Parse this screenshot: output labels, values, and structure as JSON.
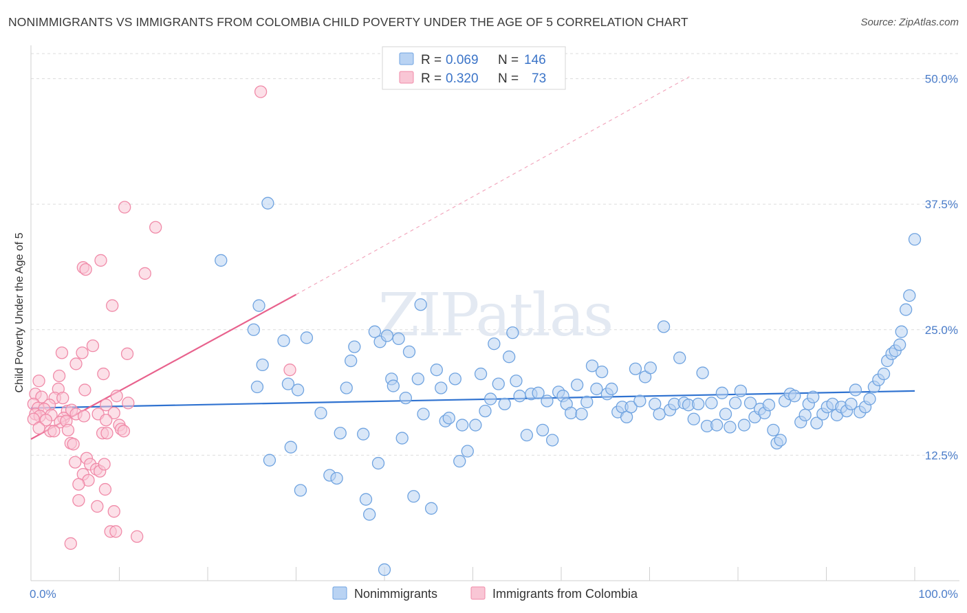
{
  "title": "NONIMMIGRANTS VS IMMIGRANTS FROM COLOMBIA CHILD POVERTY UNDER THE AGE OF 5 CORRELATION CHART",
  "source": "Source: ZipAtlas.com",
  "watermark": "ZIPatlas",
  "colors": {
    "blue": "#6fa3e0",
    "blue_fill": "#b9d3f3",
    "blue_line": "#2f72d0",
    "pink": "#f08aa8",
    "pink_fill": "#f9c6d5",
    "pink_line": "#e8628d",
    "grid": "#dcdcdc",
    "tick_label": "#4a7cc9"
  },
  "legend": {
    "r_label": "R =",
    "n_label": "N =",
    "series": [
      {
        "r": "0.069",
        "n": "146"
      },
      {
        "r": "0.320",
        "n": "73"
      }
    ]
  },
  "chart_data": {
    "type": "scatter",
    "title": "NONIMMIGRANTS VS IMMIGRANTS FROM COLOMBIA CHILD POVERTY UNDER THE AGE OF 5 CORRELATION CHART",
    "xlabel": "",
    "ylabel": "Child Poverty Under the Age of 5",
    "xlim": [
      0,
      100
    ],
    "ylim": [
      0,
      52.5
    ],
    "x_tick_labels": [
      "0.0%",
      "100.0%"
    ],
    "y_ticks": [
      12.5,
      25.0,
      37.5,
      50.0
    ],
    "y_tick_labels": [
      "12.5%",
      "25.0%",
      "37.5%",
      "50.0%"
    ],
    "grid": true,
    "legend_position": "top-center",
    "series": [
      {
        "name": "Nonimmigrants",
        "r": 0.069,
        "n": 146,
        "trend": {
          "x": [
            0,
            100
          ],
          "y": [
            17.2,
            18.9
          ]
        },
        "points": [
          [
            21.5,
            31.9
          ],
          [
            26.8,
            37.6
          ],
          [
            25.8,
            27.4
          ],
          [
            25.2,
            25.0
          ],
          [
            25.6,
            19.3
          ],
          [
            26.2,
            21.5
          ],
          [
            28.6,
            23.9
          ],
          [
            29.1,
            19.6
          ],
          [
            29.4,
            13.3
          ],
          [
            27.0,
            12.0
          ],
          [
            30.2,
            19.0
          ],
          [
            30.5,
            9.0
          ],
          [
            31.2,
            24.2
          ],
          [
            32.8,
            16.7
          ],
          [
            33.8,
            10.5
          ],
          [
            34.6,
            10.2
          ],
          [
            35.0,
            14.7
          ],
          [
            35.7,
            19.2
          ],
          [
            36.2,
            21.9
          ],
          [
            36.6,
            23.3
          ],
          [
            37.6,
            14.6
          ],
          [
            37.9,
            8.1
          ],
          [
            38.3,
            6.6
          ],
          [
            38.9,
            24.8
          ],
          [
            39.3,
            11.7
          ],
          [
            39.5,
            23.8
          ],
          [
            40.0,
            1.1
          ],
          [
            40.3,
            24.4
          ],
          [
            40.8,
            20.1
          ],
          [
            41.0,
            19.4
          ],
          [
            41.6,
            24.1
          ],
          [
            42.0,
            14.2
          ],
          [
            42.4,
            18.2
          ],
          [
            42.8,
            22.8
          ],
          [
            43.3,
            8.4
          ],
          [
            43.8,
            20.1
          ],
          [
            44.1,
            27.5
          ],
          [
            44.4,
            16.6
          ],
          [
            45.3,
            7.2
          ],
          [
            45.9,
            21.0
          ],
          [
            46.4,
            19.2
          ],
          [
            46.9,
            15.9
          ],
          [
            47.3,
            16.2
          ],
          [
            48.0,
            20.1
          ],
          [
            48.5,
            11.9
          ],
          [
            48.8,
            15.5
          ],
          [
            49.4,
            12.9
          ],
          [
            50.3,
            15.5
          ],
          [
            50.9,
            20.6
          ],
          [
            51.4,
            16.9
          ],
          [
            52.0,
            18.1
          ],
          [
            52.4,
            23.6
          ],
          [
            52.9,
            19.6
          ],
          [
            53.6,
            17.6
          ],
          [
            54.1,
            22.3
          ],
          [
            54.5,
            24.7
          ],
          [
            54.9,
            19.9
          ],
          [
            55.3,
            18.4
          ],
          [
            56.1,
            14.5
          ],
          [
            56.6,
            18.6
          ],
          [
            57.4,
            18.7
          ],
          [
            57.9,
            15.0
          ],
          [
            58.4,
            17.9
          ],
          [
            59.0,
            14.0
          ],
          [
            59.7,
            18.8
          ],
          [
            60.2,
            18.4
          ],
          [
            60.6,
            17.6
          ],
          [
            61.1,
            16.7
          ],
          [
            61.8,
            19.5
          ],
          [
            62.3,
            16.6
          ],
          [
            62.9,
            17.8
          ],
          [
            63.5,
            21.4
          ],
          [
            64.0,
            19.1
          ],
          [
            64.6,
            20.8
          ],
          [
            65.2,
            18.6
          ],
          [
            65.7,
            19.1
          ],
          [
            66.4,
            16.8
          ],
          [
            66.9,
            17.3
          ],
          [
            67.4,
            16.3
          ],
          [
            67.9,
            17.3
          ],
          [
            68.4,
            21.1
          ],
          [
            68.9,
            17.9
          ],
          [
            69.5,
            20.3
          ],
          [
            70.1,
            21.2
          ],
          [
            70.6,
            17.6
          ],
          [
            71.1,
            16.6
          ],
          [
            71.6,
            25.3
          ],
          [
            72.3,
            17.0
          ],
          [
            72.8,
            17.6
          ],
          [
            73.4,
            22.2
          ],
          [
            73.9,
            17.7
          ],
          [
            74.4,
            17.5
          ],
          [
            75.0,
            16.1
          ],
          [
            75.5,
            17.6
          ],
          [
            76.0,
            20.7
          ],
          [
            76.5,
            15.4
          ],
          [
            77.0,
            17.7
          ],
          [
            77.6,
            15.5
          ],
          [
            78.2,
            18.7
          ],
          [
            78.6,
            16.6
          ],
          [
            79.1,
            15.3
          ],
          [
            79.7,
            17.7
          ],
          [
            80.3,
            18.9
          ],
          [
            80.7,
            15.5
          ],
          [
            81.4,
            17.7
          ],
          [
            81.9,
            16.3
          ],
          [
            82.5,
            17.1
          ],
          [
            83.0,
            16.7
          ],
          [
            83.5,
            17.5
          ],
          [
            84.0,
            15.0
          ],
          [
            84.4,
            13.7
          ],
          [
            84.8,
            14.0
          ],
          [
            85.3,
            17.9
          ],
          [
            85.9,
            18.6
          ],
          [
            86.4,
            18.4
          ],
          [
            87.1,
            15.8
          ],
          [
            87.6,
            16.5
          ],
          [
            88.0,
            17.6
          ],
          [
            88.5,
            18.3
          ],
          [
            88.9,
            15.7
          ],
          [
            89.6,
            16.6
          ],
          [
            90.1,
            17.3
          ],
          [
            90.7,
            17.6
          ],
          [
            91.2,
            16.5
          ],
          [
            91.7,
            17.3
          ],
          [
            92.3,
            16.9
          ],
          [
            92.8,
            17.6
          ],
          [
            93.3,
            19.0
          ],
          [
            93.8,
            16.8
          ],
          [
            94.4,
            17.3
          ],
          [
            94.9,
            18.1
          ],
          [
            95.4,
            19.3
          ],
          [
            95.9,
            20.0
          ],
          [
            96.5,
            20.6
          ],
          [
            96.9,
            21.9
          ],
          [
            97.4,
            22.6
          ],
          [
            97.8,
            22.9
          ],
          [
            98.3,
            23.5
          ],
          [
            98.5,
            24.8
          ],
          [
            99.0,
            27.0
          ],
          [
            99.4,
            28.4
          ],
          [
            100.0,
            34.0
          ]
        ]
      },
      {
        "name": "Immigrants from Colombia",
        "r": 0.32,
        "n": 73,
        "trend_solid": {
          "x": [
            0,
            30
          ],
          "y": [
            14.1,
            28.5
          ]
        },
        "trend_dashed": {
          "x": [
            30,
            74.5
          ],
          "y": [
            28.5,
            50.2
          ]
        },
        "points": [
          [
            26.0,
            48.7
          ],
          [
            10.6,
            37.2
          ],
          [
            14.1,
            35.2
          ],
          [
            12.9,
            30.6
          ],
          [
            7.9,
            31.9
          ],
          [
            5.9,
            31.2
          ],
          [
            6.2,
            31.0
          ],
          [
            9.2,
            27.4
          ],
          [
            10.9,
            22.6
          ],
          [
            7.0,
            23.4
          ],
          [
            5.8,
            22.7
          ],
          [
            3.5,
            22.7
          ],
          [
            5.1,
            21.6
          ],
          [
            8.2,
            20.6
          ],
          [
            3.2,
            20.4
          ],
          [
            29.3,
            21.0
          ],
          [
            0.9,
            19.9
          ],
          [
            3.1,
            19.1
          ],
          [
            6.1,
            19.0
          ],
          [
            0.5,
            18.6
          ],
          [
            1.2,
            18.3
          ],
          [
            2.7,
            18.2
          ],
          [
            3.6,
            18.2
          ],
          [
            9.7,
            18.4
          ],
          [
            0.3,
            17.6
          ],
          [
            2.1,
            17.5
          ],
          [
            11.0,
            17.7
          ],
          [
            8.5,
            17.5
          ],
          [
            0.8,
            17.2
          ],
          [
            1.5,
            17.1
          ],
          [
            4.1,
            16.9
          ],
          [
            4.6,
            17.0
          ],
          [
            0.5,
            16.6
          ],
          [
            1.0,
            16.4
          ],
          [
            2.3,
            16.5
          ],
          [
            3.7,
            16.2
          ],
          [
            5.1,
            16.6
          ],
          [
            6.0,
            16.4
          ],
          [
            7.6,
            16.6
          ],
          [
            9.4,
            16.7
          ],
          [
            0.3,
            16.1
          ],
          [
            1.7,
            16.0
          ],
          [
            3.3,
            15.8
          ],
          [
            4.0,
            15.9
          ],
          [
            4.2,
            15.0
          ],
          [
            2.2,
            14.9
          ],
          [
            2.6,
            14.9
          ],
          [
            0.9,
            15.2
          ],
          [
            10.0,
            15.5
          ],
          [
            10.2,
            15.1
          ],
          [
            10.5,
            14.9
          ],
          [
            8.1,
            14.7
          ],
          [
            8.6,
            14.7
          ],
          [
            4.5,
            13.7
          ],
          [
            4.8,
            13.6
          ],
          [
            6.3,
            12.2
          ],
          [
            6.7,
            11.6
          ],
          [
            7.4,
            11.1
          ],
          [
            7.8,
            10.9
          ],
          [
            8.3,
            11.6
          ],
          [
            5.0,
            11.8
          ],
          [
            5.9,
            10.6
          ],
          [
            6.5,
            10.0
          ],
          [
            5.4,
            9.6
          ],
          [
            8.4,
            9.1
          ],
          [
            5.4,
            8.0
          ],
          [
            7.5,
            7.4
          ],
          [
            9.4,
            6.9
          ],
          [
            9.0,
            4.9
          ],
          [
            9.6,
            4.9
          ],
          [
            12.0,
            4.4
          ],
          [
            4.5,
            3.7
          ],
          [
            8.5,
            16.0
          ]
        ]
      }
    ]
  },
  "bottom_legend": [
    "Nonimmigrants",
    "Immigrants from Colombia"
  ]
}
